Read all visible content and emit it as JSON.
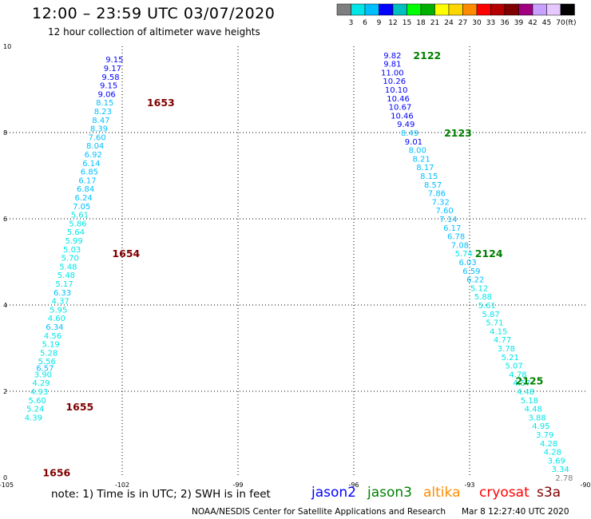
{
  "header": {
    "title": "12:00 – 23:59 UTC 03/07/2020",
    "subtitle": "12 hour collection of altimeter wave heights"
  },
  "colorbar": {
    "unit": "(ft)",
    "ticks": [
      "3",
      "6",
      "9",
      "12",
      "15",
      "18",
      "21",
      "24",
      "27",
      "30",
      "33",
      "36",
      "39",
      "42",
      "45",
      "70"
    ],
    "colors": [
      "#7f7f7f",
      "#00e6e6",
      "#00bfff",
      "#0000ff",
      "#00bfbf",
      "#00ff00",
      "#00b000",
      "#ffff00",
      "#ffd700",
      "#ff8c00",
      "#ff0000",
      "#b40000",
      "#7f0000",
      "#a0007f",
      "#c8a0ff",
      "#e6c8ff",
      "#000000"
    ]
  },
  "chart_data": {
    "type": "scatter",
    "title": "12:00 – 23:59 UTC 03/07/2020",
    "subtitle": "12 hour collection of altimeter wave heights",
    "xlim": [
      -105,
      -90
    ],
    "ylim": [
      0,
      10
    ],
    "xticks": [
      "-105",
      "-102",
      "-99",
      "-96",
      "-93",
      "-90"
    ],
    "yticks": [
      "0",
      "2",
      "4",
      "6",
      "8",
      "10"
    ],
    "grid": true,
    "series": [
      {
        "name": "jason2",
        "track": "west",
        "points": [
          {
            "x": -102.2,
            "y": 9.7,
            "v": "9.15",
            "c": "#0000ff"
          },
          {
            "x": -102.25,
            "y": 9.5,
            "v": "9.17",
            "c": "#0000ff"
          },
          {
            "x": -102.3,
            "y": 9.3,
            "v": "9.58",
            "c": "#0000ff"
          },
          {
            "x": -102.35,
            "y": 9.1,
            "v": "9.15",
            "c": "#0000ff"
          },
          {
            "x": -102.4,
            "y": 8.9,
            "v": "9.06",
            "c": "#0000ff"
          },
          {
            "x": -102.45,
            "y": 8.7,
            "v": "8.15",
            "c": "#00bfff"
          },
          {
            "x": -102.5,
            "y": 8.5,
            "v": "8.23",
            "c": "#00bfff"
          },
          {
            "x": -102.55,
            "y": 8.3,
            "v": "8.47",
            "c": "#00bfff"
          },
          {
            "x": -102.6,
            "y": 8.1,
            "v": "8.39",
            "c": "#00bfff"
          },
          {
            "x": -102.65,
            "y": 7.9,
            "v": "7.60",
            "c": "#00bfff"
          },
          {
            "x": -102.7,
            "y": 7.7,
            "v": "8.04",
            "c": "#00bfff"
          },
          {
            "x": -102.75,
            "y": 7.5,
            "v": "6.92",
            "c": "#00bfff"
          },
          {
            "x": -102.8,
            "y": 7.3,
            "v": "6.14",
            "c": "#00bfff"
          },
          {
            "x": -102.85,
            "y": 7.1,
            "v": "6.85",
            "c": "#00bfff"
          },
          {
            "x": -102.9,
            "y": 6.9,
            "v": "6.17",
            "c": "#00bfff"
          },
          {
            "x": -102.95,
            "y": 6.7,
            "v": "6.84",
            "c": "#00bfff"
          },
          {
            "x": -103.0,
            "y": 6.5,
            "v": "6.24",
            "c": "#00bfff"
          },
          {
            "x": -103.05,
            "y": 6.3,
            "v": "7.05",
            "c": "#00bfff"
          },
          {
            "x": -103.1,
            "y": 6.1,
            "v": "5.61",
            "c": "#00e6e6"
          },
          {
            "x": -103.15,
            "y": 5.9,
            "v": "5.86",
            "c": "#00e6e6"
          },
          {
            "x": -103.2,
            "y": 5.7,
            "v": "5.64",
            "c": "#00e6e6"
          },
          {
            "x": -103.25,
            "y": 5.5,
            "v": "5.99",
            "c": "#00e6e6"
          },
          {
            "x": -103.3,
            "y": 5.3,
            "v": "5.03",
            "c": "#00e6e6"
          },
          {
            "x": -103.35,
            "y": 5.1,
            "v": "5.70",
            "c": "#00e6e6"
          },
          {
            "x": -103.4,
            "y": 4.9,
            "v": "5.48",
            "c": "#00e6e6"
          },
          {
            "x": -103.45,
            "y": 4.7,
            "v": "5.48",
            "c": "#00e6e6"
          },
          {
            "x": -103.5,
            "y": 4.5,
            "v": "5.17",
            "c": "#00e6e6"
          },
          {
            "x": -103.55,
            "y": 4.3,
            "v": "6.33",
            "c": "#00bfff"
          },
          {
            "x": -103.6,
            "y": 4.1,
            "v": "4.37",
            "c": "#00e6e6"
          },
          {
            "x": -103.65,
            "y": 3.9,
            "v": "5.95",
            "c": "#00e6e6"
          },
          {
            "x": -103.7,
            "y": 3.7,
            "v": "4.60",
            "c": "#00e6e6"
          },
          {
            "x": -103.75,
            "y": 3.5,
            "v": "6.34",
            "c": "#00bfff"
          },
          {
            "x": -103.8,
            "y": 3.3,
            "v": "4.56",
            "c": "#00e6e6"
          },
          {
            "x": -103.85,
            "y": 3.1,
            "v": "5.19",
            "c": "#00e6e6"
          },
          {
            "x": -103.9,
            "y": 2.9,
            "v": "5.28",
            "c": "#00e6e6"
          },
          {
            "x": -103.95,
            "y": 2.7,
            "v": "5.56",
            "c": "#00e6e6"
          },
          {
            "x": -104.0,
            "y": 2.55,
            "v": "6.57",
            "c": "#00bfff"
          },
          {
            "x": -104.05,
            "y": 2.4,
            "v": "3.90",
            "c": "#00e6e6"
          },
          {
            "x": -104.1,
            "y": 2.2,
            "v": "4.29",
            "c": "#00e6e6"
          },
          {
            "x": -104.15,
            "y": 2.0,
            "v": "4.93",
            "c": "#00e6e6"
          },
          {
            "x": -104.2,
            "y": 1.8,
            "v": "5.60",
            "c": "#00e6e6"
          },
          {
            "x": -104.25,
            "y": 1.6,
            "v": "5.24",
            "c": "#00e6e6"
          },
          {
            "x": -104.3,
            "y": 1.4,
            "v": "4.39",
            "c": "#00e6e6"
          }
        ]
      },
      {
        "name": "jason3",
        "track": "east",
        "points": [
          {
            "x": -95.0,
            "y": 9.8,
            "v": "9.82",
            "c": "#0000ff"
          },
          {
            "x": -95.0,
            "y": 9.6,
            "v": "9.81",
            "c": "#0000ff"
          },
          {
            "x": -95.0,
            "y": 9.4,
            "v": "11.00",
            "c": "#0000ff"
          },
          {
            "x": -94.95,
            "y": 9.2,
            "v": "10.26",
            "c": "#0000ff"
          },
          {
            "x": -94.9,
            "y": 9.0,
            "v": "10.10",
            "c": "#0000ff"
          },
          {
            "x": -94.85,
            "y": 8.8,
            "v": "10.46",
            "c": "#0000ff"
          },
          {
            "x": -94.8,
            "y": 8.6,
            "v": "10.67",
            "c": "#0000ff"
          },
          {
            "x": -94.75,
            "y": 8.4,
            "v": "10.46",
            "c": "#0000ff"
          },
          {
            "x": -94.65,
            "y": 8.2,
            "v": "9.49",
            "c": "#0000ff"
          },
          {
            "x": -94.55,
            "y": 8.0,
            "v": "8.49",
            "c": "#00bfff"
          },
          {
            "x": -94.45,
            "y": 7.8,
            "v": "9.01",
            "c": "#0000ff"
          },
          {
            "x": -94.35,
            "y": 7.6,
            "v": "8.00",
            "c": "#00bfff"
          },
          {
            "x": -94.25,
            "y": 7.4,
            "v": "8.21",
            "c": "#00bfff"
          },
          {
            "x": -94.15,
            "y": 7.2,
            "v": "8.17",
            "c": "#00bfff"
          },
          {
            "x": -94.05,
            "y": 7.0,
            "v": "8.15",
            "c": "#00bfff"
          },
          {
            "x": -93.95,
            "y": 6.8,
            "v": "8.57",
            "c": "#00bfff"
          },
          {
            "x": -93.85,
            "y": 6.6,
            "v": "7.86",
            "c": "#00bfff"
          },
          {
            "x": -93.75,
            "y": 6.4,
            "v": "7.32",
            "c": "#00bfff"
          },
          {
            "x": -93.65,
            "y": 6.2,
            "v": "7.60",
            "c": "#00bfff"
          },
          {
            "x": -93.55,
            "y": 6.0,
            "v": "7.14",
            "c": "#00bfff"
          },
          {
            "x": -93.45,
            "y": 5.8,
            "v": "6.17",
            "c": "#00bfff"
          },
          {
            "x": -93.35,
            "y": 5.6,
            "v": "6.78",
            "c": "#00bfff"
          },
          {
            "x": -93.25,
            "y": 5.4,
            "v": "7.08",
            "c": "#00bfff"
          },
          {
            "x": -93.15,
            "y": 5.2,
            "v": "5.74",
            "c": "#00e6e6"
          },
          {
            "x": -93.05,
            "y": 5.0,
            "v": "6.03",
            "c": "#00bfff"
          },
          {
            "x": -92.95,
            "y": 4.8,
            "v": "6.59",
            "c": "#00bfff"
          },
          {
            "x": -92.85,
            "y": 4.6,
            "v": "6.22",
            "c": "#00bfff"
          },
          {
            "x": -92.75,
            "y": 4.4,
            "v": "5.12",
            "c": "#00e6e6"
          },
          {
            "x": -92.65,
            "y": 4.2,
            "v": "5.88",
            "c": "#00e6e6"
          },
          {
            "x": -92.55,
            "y": 4.0,
            "v": "5.61",
            "c": "#00e6e6"
          },
          {
            "x": -92.45,
            "y": 3.8,
            "v": "5.87",
            "c": "#00e6e6"
          },
          {
            "x": -92.35,
            "y": 3.6,
            "v": "5.71",
            "c": "#00e6e6"
          },
          {
            "x": -92.25,
            "y": 3.4,
            "v": "4.15",
            "c": "#00e6e6"
          },
          {
            "x": -92.15,
            "y": 3.2,
            "v": "4.77",
            "c": "#00e6e6"
          },
          {
            "x": -92.05,
            "y": 3.0,
            "v": "3.78",
            "c": "#00e6e6"
          },
          {
            "x": -91.95,
            "y": 2.8,
            "v": "5.21",
            "c": "#00e6e6"
          },
          {
            "x": -91.85,
            "y": 2.6,
            "v": "5.07",
            "c": "#00e6e6"
          },
          {
            "x": -91.75,
            "y": 2.4,
            "v": "4.78",
            "c": "#00e6e6"
          },
          {
            "x": -91.65,
            "y": 2.2,
            "v": "4.57",
            "c": "#00e6e6"
          },
          {
            "x": -91.55,
            "y": 2.0,
            "v": "4.48",
            "c": "#00e6e6"
          },
          {
            "x": -91.45,
            "y": 1.8,
            "v": "5.18",
            "c": "#00e6e6"
          },
          {
            "x": -91.35,
            "y": 1.6,
            "v": "4.48",
            "c": "#00e6e6"
          },
          {
            "x": -91.25,
            "y": 1.4,
            "v": "3.88",
            "c": "#00e6e6"
          },
          {
            "x": -91.15,
            "y": 1.2,
            "v": "4.95",
            "c": "#00e6e6"
          },
          {
            "x": -91.05,
            "y": 1.0,
            "v": "3.79",
            "c": "#00e6e6"
          },
          {
            "x": -90.95,
            "y": 0.8,
            "v": "4.28",
            "c": "#00e6e6"
          },
          {
            "x": -90.85,
            "y": 0.6,
            "v": "4.28",
            "c": "#00e6e6"
          },
          {
            "x": -90.75,
            "y": 0.4,
            "v": "3.69",
            "c": "#00e6e6"
          },
          {
            "x": -90.65,
            "y": 0.2,
            "v": "3.34",
            "c": "#00e6e6"
          },
          {
            "x": -90.55,
            "y": 0.0,
            "v": "2.78",
            "c": "#7f7f7f"
          }
        ]
      }
    ],
    "time_labels": [
      {
        "x": -101.0,
        "y": 8.7,
        "text": "1653",
        "c": "#7f0000"
      },
      {
        "x": -101.9,
        "y": 5.2,
        "text": "1654",
        "c": "#7f0000"
      },
      {
        "x": -103.1,
        "y": 1.65,
        "text": "1655",
        "c": "#7f0000"
      },
      {
        "x": -103.7,
        "y": 0.12,
        "text": "1656",
        "c": "#7f0000"
      },
      {
        "x": -94.1,
        "y": 9.8,
        "text": "2122",
        "c": "#008000"
      },
      {
        "x": -93.3,
        "y": 8.0,
        "text": "2123",
        "c": "#008000"
      },
      {
        "x": -92.5,
        "y": 5.2,
        "text": "2124",
        "c": "#008000"
      },
      {
        "x": -91.45,
        "y": 2.25,
        "text": "2125",
        "c": "#008000"
      }
    ]
  },
  "legend": {
    "note": "note: 1) Time is in UTC; 2) SWH is in feet",
    "items": [
      {
        "name": "jason2",
        "color": "#0000ff"
      },
      {
        "name": "jason3",
        "color": "#008000"
      },
      {
        "name": "altika",
        "color": "#ff8c00"
      },
      {
        "name": "cryosat",
        "color": "#ff0000"
      },
      {
        "name": "s3a",
        "color": "#7f0000"
      }
    ]
  },
  "footer": {
    "credit": "NOAA/NESDIS Center for Satellite Applications and Research",
    "timestamp": "Mar  8 12:27:40 UTC 2020"
  }
}
